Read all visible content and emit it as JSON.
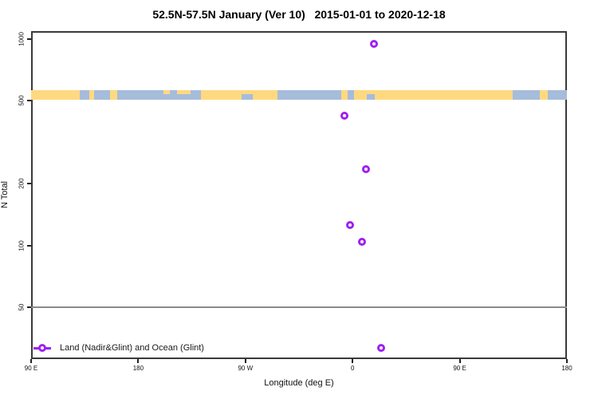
{
  "title": "52.5N-57.5N January (Ver 10)   2015-01-01 to 2020-12-18",
  "chart_data": {
    "type": "scatter",
    "title": "52.5N-57.5N January (Ver 10)   2015-01-01 to 2020-12-18",
    "xlabel": "Longitude (deg E)",
    "ylabel": "N Total",
    "yscale": "log",
    "xlim": [
      -270,
      180
    ],
    "ylim": [
      28,
      1080
    ],
    "x_ticks": [
      {
        "lon": -270,
        "label": "90 E"
      },
      {
        "lon": -180,
        "label": "180"
      },
      {
        "lon": -90,
        "label": "90 W"
      },
      {
        "lon": 0,
        "label": "0"
      },
      {
        "lon": 90,
        "label": "90 E"
      },
      {
        "lon": 180,
        "label": "180"
      }
    ],
    "y_ticks": [
      {
        "value": 1000,
        "label": "1000"
      },
      {
        "value": 500,
        "label": "500"
      },
      {
        "value": 200,
        "label": "200"
      },
      {
        "value": 100,
        "label": "100"
      },
      {
        "value": 50,
        "label": "50"
      }
    ],
    "hlines": [
      50
    ],
    "points": [
      {
        "lon": 18,
        "n_total": 940
      },
      {
        "lon": -7,
        "n_total": 424
      },
      {
        "lon": 11,
        "n_total": 233
      },
      {
        "lon": -2,
        "n_total": 126
      },
      {
        "lon": 8,
        "n_total": 104
      },
      {
        "lon": 24,
        "n_total": 32
      }
    ],
    "legend": {
      "label": "Land (Nadir&Glint) and Ocean (Glint)",
      "position": "bottom-left",
      "marker": "open-circle-on-line"
    },
    "map_band": {
      "description": "latitude strip map 52.5N-57.5N drawn across plot near N=500; land vs ocean along longitude",
      "at_value": 530,
      "ocean_segments_pct": [
        {
          "left": 9.1,
          "width": 1.8,
          "part": "full"
        },
        {
          "left": 11.8,
          "width": 2.9,
          "part": "full"
        },
        {
          "left": 16.1,
          "width": 8.6,
          "part": "full"
        },
        {
          "left": 24.7,
          "width": 1.2,
          "part": "bottom"
        },
        {
          "left": 25.9,
          "width": 1.3,
          "part": "full"
        },
        {
          "left": 27.2,
          "width": 2.6,
          "part": "bottom"
        },
        {
          "left": 29.8,
          "width": 1.9,
          "part": "full"
        },
        {
          "left": 39.3,
          "width": 2.1,
          "part": "bottom"
        },
        {
          "left": 46.0,
          "width": 11.9,
          "part": "full"
        },
        {
          "left": 59.1,
          "width": 1.2,
          "part": "full"
        },
        {
          "left": 62.6,
          "width": 1.5,
          "part": "bottom"
        },
        {
          "left": 89.9,
          "width": 5.0,
          "part": "full"
        },
        {
          "left": 96.4,
          "width": 3.6,
          "part": "full"
        }
      ]
    }
  },
  "colors": {
    "marker_purple": "#A020F0",
    "land_yellow": "#FFD980",
    "ocean_blue": "#A6BCDB",
    "gridline_gray": "#8a8a8a",
    "box_gray": "#3a3a3a"
  }
}
